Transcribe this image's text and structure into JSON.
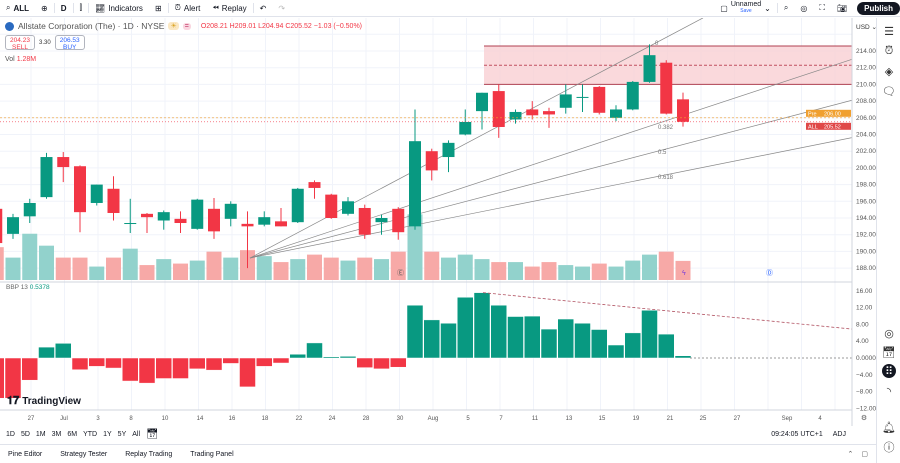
{
  "toolbar": {
    "symbol": "ALL",
    "interval": "D",
    "indicators": "Indicators",
    "alert": "Alert",
    "replay": "Replay",
    "layout_name": "Unnamed",
    "layout_status": "Save",
    "publish": "Publish"
  },
  "legend": {
    "title": "Allstate Corporation (The) · 1D · NYSE",
    "open": "O208.21",
    "high": "H209.01",
    "low": "L204.94",
    "close": "C205.52",
    "change": "−1.03 (−0.50%)",
    "sell_price": "204.23",
    "sell_label": "SELL",
    "spread": "3.30",
    "buy_price": "206.53",
    "buy_label": "BUY",
    "vol_label": "Vol",
    "vol_value": "1.28M"
  },
  "bbp": {
    "label": "BBP 13",
    "value": "0.5378"
  },
  "brand": "TradingView",
  "price_axis": {
    "currency": "USD",
    "ticks": [
      "214.00",
      "212.00",
      "210.00",
      "208.00",
      "206.00",
      "204.00",
      "202.00",
      "200.00",
      "198.00",
      "196.00",
      "194.00",
      "192.00",
      "190.00",
      "188.00"
    ],
    "pre_label": "Pre",
    "pre_value": "206.00",
    "last_label": "ALL",
    "last_value": "205.52"
  },
  "bbp_axis": {
    "ticks": [
      "16.00",
      "12.00",
      "8.00",
      "4.00",
      "0.0000",
      "−4.00",
      "−8.00",
      "−12.00"
    ]
  },
  "x_axis": {
    "labels": [
      "27",
      "Jul",
      "3",
      "8",
      "10",
      "14",
      "16",
      "18",
      "22",
      "24",
      "28",
      "30",
      "Aug",
      "5",
      "7",
      "11",
      "13",
      "15",
      "19",
      "21",
      "25",
      "27",
      "Sep",
      "4"
    ]
  },
  "fib_labels": [
    "0",
    "0.382",
    "0.5",
    "0.618"
  ],
  "range_bar": {
    "items": [
      "1D",
      "5D",
      "1M",
      "3M",
      "6M",
      "YTD",
      "1Y",
      "5Y",
      "All"
    ],
    "time": "09:24:05 UTC+1",
    "adj": "ADJ"
  },
  "bottom_tabs": [
    "Pine Editor",
    "Strategy Tester",
    "Replay Trading",
    "Trading Panel"
  ],
  "colors": {
    "up": "#089981",
    "down": "#f23645",
    "up_vol": "#92d2cc",
    "down_vol": "#f7a9a7",
    "zone": "#f9d0d3"
  },
  "chart_data": {
    "type": "candlestick",
    "ylim": [
      186.5,
      216
    ],
    "candles": [
      [
        195.1,
        195.5,
        190.5,
        191.0
      ],
      [
        192.1,
        194.5,
        191.5,
        194.1
      ],
      [
        194.2,
        196.3,
        193.4,
        195.8
      ],
      [
        196.5,
        201.8,
        196.3,
        201.3
      ],
      [
        201.3,
        201.9,
        198.3,
        200.1
      ],
      [
        200.2,
        200.3,
        192.3,
        194.7
      ],
      [
        195.8,
        198.0,
        195.5,
        198.0
      ],
      [
        197.5,
        199.0,
        193.7,
        194.6
      ],
      [
        193.4,
        196.3,
        192.2,
        193.4
      ],
      [
        194.5,
        194.6,
        192.2,
        194.1
      ],
      [
        193.7,
        194.9,
        192.6,
        194.7
      ],
      [
        193.9,
        194.8,
        192.2,
        193.4
      ],
      [
        192.7,
        196.3,
        192.6,
        196.2
      ],
      [
        195.1,
        196.4,
        191.5,
        192.4
      ],
      [
        193.9,
        196.0,
        193.0,
        195.7
      ],
      [
        193.3,
        194.8,
        188.0,
        193.0
      ],
      [
        193.2,
        194.8,
        193.0,
        194.1
      ],
      [
        193.6,
        195.2,
        193.0,
        193.0
      ],
      [
        193.5,
        197.6,
        193.4,
        197.5
      ],
      [
        198.3,
        198.5,
        196.3,
        197.6
      ],
      [
        196.8,
        196.9,
        193.9,
        194.0
      ],
      [
        194.5,
        196.5,
        194.3,
        196.0
      ],
      [
        195.2,
        195.6,
        191.5,
        192.0
      ],
      [
        193.5,
        194.4,
        192.0,
        194.0
      ],
      [
        195.1,
        195.3,
        191.4,
        192.3
      ],
      [
        193.0,
        207.0,
        192.6,
        203.2
      ],
      [
        202.0,
        202.3,
        198.5,
        199.7
      ],
      [
        201.3,
        203.3,
        199.5,
        203.0
      ],
      [
        204.0,
        207.0,
        203.9,
        205.5
      ],
      [
        206.8,
        209.0,
        204.6,
        209.0
      ],
      [
        209.2,
        210.0,
        203.6,
        204.9
      ],
      [
        205.8,
        207.0,
        205.3,
        206.7
      ],
      [
        207.0,
        208.0,
        205.8,
        206.3
      ],
      [
        206.8,
        207.2,
        204.8,
        206.4
      ],
      [
        207.2,
        210.0,
        206.5,
        208.8
      ],
      [
        208.5,
        210.0,
        206.7,
        208.5
      ],
      [
        209.7,
        209.8,
        206.4,
        206.6
      ],
      [
        206.0,
        207.5,
        205.6,
        207.0
      ],
      [
        207.0,
        210.4,
        206.9,
        210.3
      ],
      [
        210.3,
        214.8,
        210.2,
        213.5
      ],
      [
        212.6,
        212.9,
        206.4,
        206.5
      ],
      [
        208.21,
        209.01,
        204.94,
        205.52
      ]
    ],
    "volume_m": [
      2.2,
      1.5,
      3.1,
      2.3,
      1.5,
      1.5,
      0.9,
      1.5,
      2.1,
      1.0,
      1.4,
      1.1,
      1.3,
      1.9,
      1.5,
      2.0,
      1.6,
      1.2,
      1.4,
      1.7,
      1.5,
      1.3,
      1.5,
      1.4,
      1.9,
      4.4,
      1.9,
      1.5,
      1.7,
      1.4,
      1.2,
      1.2,
      0.9,
      1.2,
      1.0,
      0.9,
      1.1,
      0.9,
      1.3,
      1.7,
      1.9,
      1.28
    ],
    "bbp": [
      -9.6,
      -9.6,
      -5.3,
      2.6,
      3.5,
      -2.8,
      -2.0,
      -2.4,
      -5.5,
      -6.0,
      -4.9,
      -4.9,
      -2.6,
      -2.9,
      -1.3,
      -6.9,
      -2.0,
      -1.2,
      0.9,
      3.6,
      0.3,
      0.4,
      -2.3,
      -2.6,
      -2.2,
      12.6,
      9.1,
      8.3,
      14.5,
      15.6,
      12.6,
      9.9,
      10.0,
      6.9,
      9.3,
      8.3,
      6.8,
      3.1,
      6.0,
      11.4,
      5.7,
      0.5378
    ],
    "resistance_zone": [
      210.0,
      214.6
    ],
    "bbp_ylim": [
      -12,
      16
    ]
  }
}
